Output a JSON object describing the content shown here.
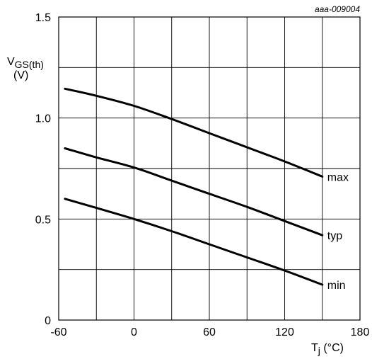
{
  "figure_ref": "aaa-009004",
  "chart_data": {
    "type": "line",
    "ylabel_main": "V",
    "ylabel_sub": "GS(th)",
    "ylabel_unit": "(V)",
    "xlabel_main": "T",
    "xlabel_sub": "j",
    "xlabel_unit": " (°C)",
    "xlim": [
      -60,
      180
    ],
    "ylim": [
      0,
      1.5
    ],
    "x_ticks": [
      -60,
      0,
      60,
      120,
      180
    ],
    "x_tick_labels": [
      "-60",
      "0",
      "60",
      "120",
      "180"
    ],
    "y_ticks": [
      0,
      0.5,
      1.0,
      1.5
    ],
    "y_tick_labels": [
      "0",
      "0.5",
      "1.0",
      "1.5"
    ],
    "x_grid": [
      -60,
      -30,
      0,
      30,
      60,
      90,
      120,
      150,
      180
    ],
    "y_grid": [
      0,
      0.25,
      0.5,
      0.75,
      1.0,
      1.25,
      1.5
    ],
    "grid": true,
    "series": [
      {
        "name": "max",
        "x": [
          -55,
          -30,
          0,
          30,
          60,
          90,
          120,
          150
        ],
        "y": [
          1.145,
          1.11,
          1.06,
          0.995,
          0.925,
          0.855,
          0.785,
          0.71
        ]
      },
      {
        "name": "typ",
        "x": [
          -55,
          -30,
          0,
          30,
          60,
          90,
          120,
          150
        ],
        "y": [
          0.85,
          0.805,
          0.755,
          0.69,
          0.625,
          0.56,
          0.49,
          0.42
        ]
      },
      {
        "name": "min",
        "x": [
          -55,
          -30,
          0,
          30,
          60,
          90,
          120,
          150
        ],
        "y": [
          0.6,
          0.555,
          0.5,
          0.44,
          0.375,
          0.31,
          0.245,
          0.175
        ]
      }
    ]
  }
}
